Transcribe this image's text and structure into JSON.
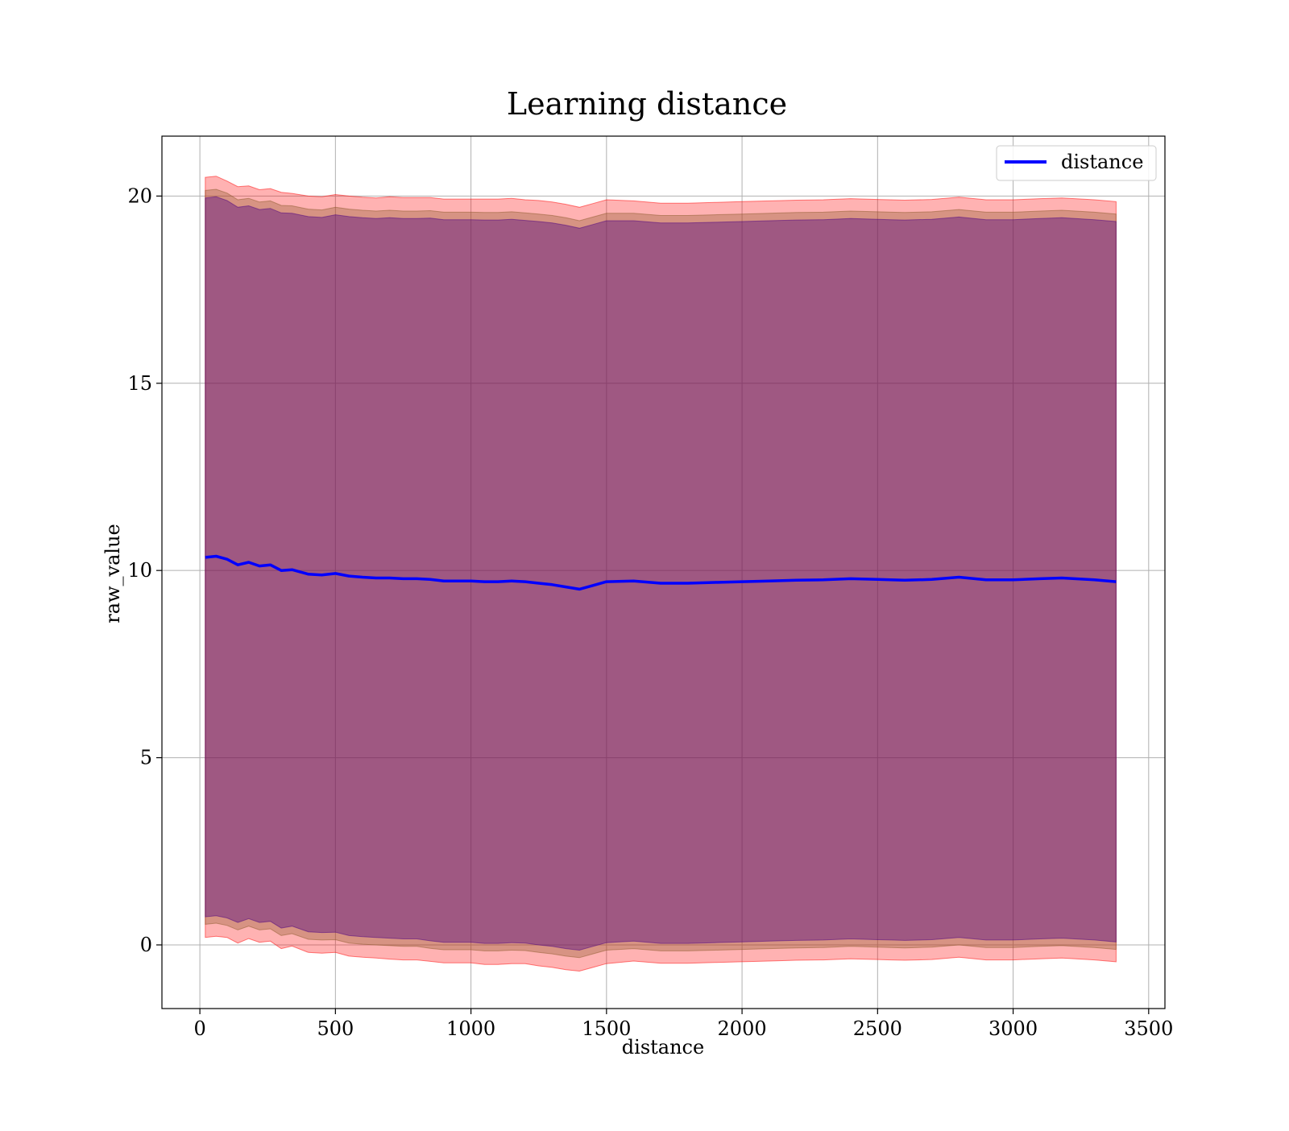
{
  "chart_data": {
    "type": "line",
    "title": "Learning distance",
    "xlabel": "distance",
    "ylabel": "raw_value",
    "xlim": [
      -140,
      3560
    ],
    "ylim": [
      -1.7,
      21.6
    ],
    "x_ticks": [
      0,
      500,
      1000,
      1500,
      2000,
      2500,
      3000,
      3500
    ],
    "y_ticks": [
      0,
      5,
      10,
      15,
      20
    ],
    "grid": true,
    "legend": {
      "position": "top-right",
      "entries": [
        "distance"
      ]
    },
    "colors": {
      "line": "#0000ff",
      "band_outer": "#ff0000",
      "band_middle": "#8b5a2b",
      "band_inner": "#4b0082",
      "grid": "#b0b0b0"
    },
    "series": [
      {
        "name": "distance",
        "x": [
          20,
          60,
          100,
          140,
          180,
          220,
          260,
          300,
          340,
          400,
          450,
          500,
          550,
          600,
          650,
          700,
          750,
          800,
          850,
          900,
          950,
          1000,
          1050,
          1100,
          1150,
          1200,
          1250,
          1300,
          1350,
          1400,
          1450,
          1500,
          1600,
          1700,
          1800,
          1900,
          2000,
          2100,
          2200,
          2300,
          2400,
          2500,
          2550,
          2600,
          2700,
          2800,
          2900,
          3000,
          3100,
          3180,
          3300,
          3380
        ],
        "y": [
          10.35,
          10.38,
          10.3,
          10.15,
          10.22,
          10.12,
          10.15,
          10.0,
          10.02,
          9.9,
          9.88,
          9.92,
          9.85,
          9.82,
          9.8,
          9.8,
          9.78,
          9.78,
          9.76,
          9.72,
          9.72,
          9.72,
          9.7,
          9.7,
          9.72,
          9.7,
          9.66,
          9.62,
          9.56,
          9.5,
          9.6,
          9.7,
          9.72,
          9.66,
          9.66,
          9.68,
          9.7,
          9.72,
          9.74,
          9.75,
          9.78,
          9.76,
          9.75,
          9.74,
          9.76,
          9.82,
          9.75,
          9.75,
          9.78,
          9.8,
          9.75,
          9.7
        ]
      }
    ],
    "bands": [
      {
        "name": "outer",
        "halfwidth": [
          10.15,
          10.15,
          10.1,
          10.1,
          10.05,
          10.05,
          10.05,
          10.1,
          10.05,
          10.1,
          10.1,
          10.12,
          10.15,
          10.15,
          10.15,
          10.18,
          10.18,
          10.18,
          10.2,
          10.2,
          10.2,
          10.2,
          10.22,
          10.22,
          10.22,
          10.2,
          10.22,
          10.22,
          10.22,
          10.2,
          10.2,
          10.2,
          10.15,
          10.15,
          10.15,
          10.15,
          10.15,
          10.15,
          10.15,
          10.15,
          10.15,
          10.15,
          10.15,
          10.15,
          10.15,
          10.15,
          10.15,
          10.15,
          10.15,
          10.15,
          10.15,
          10.15
        ]
      },
      {
        "name": "middle",
        "halfwidth": [
          9.8,
          9.8,
          9.78,
          9.75,
          9.72,
          9.72,
          9.72,
          9.75,
          9.72,
          9.75,
          9.75,
          9.78,
          9.8,
          9.8,
          9.8,
          9.82,
          9.82,
          9.82,
          9.85,
          9.85,
          9.85,
          9.85,
          9.86,
          9.86,
          9.86,
          9.85,
          9.86,
          9.86,
          9.86,
          9.84,
          9.84,
          9.84,
          9.82,
          9.82,
          9.82,
          9.82,
          9.82,
          9.82,
          9.82,
          9.82,
          9.82,
          9.82,
          9.82,
          9.82,
          9.82,
          9.82,
          9.82,
          9.82,
          9.82,
          9.82,
          9.82,
          9.82
        ]
      },
      {
        "name": "inner",
        "halfwidth": [
          9.6,
          9.6,
          9.58,
          9.55,
          9.52,
          9.52,
          9.52,
          9.55,
          9.52,
          9.55,
          9.55,
          9.58,
          9.6,
          9.6,
          9.6,
          9.62,
          9.62,
          9.62,
          9.65,
          9.65,
          9.65,
          9.65,
          9.66,
          9.66,
          9.66,
          9.65,
          9.66,
          9.66,
          9.66,
          9.64,
          9.64,
          9.64,
          9.62,
          9.62,
          9.62,
          9.62,
          9.62,
          9.62,
          9.62,
          9.62,
          9.62,
          9.62,
          9.62,
          9.62,
          9.62,
          9.62,
          9.62,
          9.62,
          9.62,
          9.62,
          9.62,
          9.62
        ]
      }
    ]
  }
}
